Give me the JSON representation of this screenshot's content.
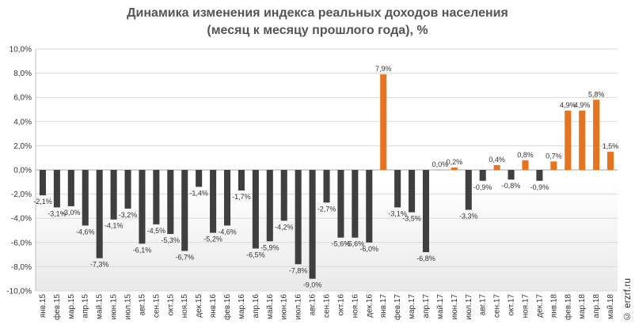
{
  "chart_data": {
    "type": "bar",
    "title_line1": "Динамика изменения индекса реальных доходов населения",
    "title_line2": "(месяц к месяцу прошлого года), %",
    "xlabel": "",
    "ylabel": "",
    "ylim": [
      -10,
      10
    ],
    "yticks": [
      "-10,0%",
      "-8,0%",
      "-6,0%",
      "-4,0%",
      "-2,0%",
      "0,0%",
      "2,0%",
      "4,0%",
      "6,0%",
      "8,0%",
      "10,0%"
    ],
    "ytick_values": [
      -10,
      -8,
      -6,
      -4,
      -2,
      0,
      2,
      4,
      6,
      8,
      10
    ],
    "categories": [
      "янв.15",
      "фев.15",
      "мар.15",
      "апр.15",
      "май.15",
      "июн.15",
      "июл.15",
      "авг.15",
      "сен.15",
      "окт.15",
      "ноя.15",
      "дек.15",
      "янв.16",
      "фев.16",
      "мар.16",
      "апр.16",
      "май.16",
      "июн.16",
      "июл.16",
      "авг.16",
      "сен.16",
      "окт.16",
      "ноя.16",
      "дек.16",
      "янв.17",
      "фев.17",
      "мар.17",
      "апр.17",
      "май.17",
      "июн.17",
      "июл.17",
      "авг.17",
      "сен.17",
      "окт.17",
      "ноя.17",
      "дек.17",
      "янв.18",
      "фев.18",
      "мар.18",
      "апр.18",
      "май.18"
    ],
    "values": [
      -2.1,
      -3.1,
      -3.0,
      -4.6,
      -7.3,
      -4.1,
      -3.2,
      -6.1,
      -4.5,
      -5.3,
      -6.7,
      -1.4,
      -5.2,
      -4.6,
      -1.7,
      -6.5,
      -5.9,
      -4.2,
      -7.8,
      -9.0,
      -2.7,
      -5.6,
      -5.6,
      -6.0,
      7.9,
      -3.1,
      -3.5,
      -6.8,
      0.0,
      0.2,
      -3.3,
      -0.9,
      0.4,
      -0.8,
      0.8,
      -0.9,
      0.7,
      4.9,
      4.9,
      5.8,
      1.5
    ],
    "data_labels": [
      "-2,1%",
      "-3,1%",
      "-3,0%",
      "-4,6%",
      "-7,3%",
      "-4,1%",
      "-3,2%",
      "-6,1%",
      "-4,5%",
      "-5,3%",
      "-6,7%",
      "-1,4%",
      "-5,2%",
      "-4,6%",
      "-1,7%",
      "-6,5%",
      "-5,9%",
      "-4,2%",
      "-7,8%",
      "-9,0%",
      "-2,7%",
      "-5,6%",
      "-5,6%",
      "-6,0%",
      "7,9%",
      "-3,1%",
      "-3,5%",
      "-6,8%",
      "0,0%",
      "0,2%",
      "-3,3%",
      "-0,9%",
      "0,4%",
      "-0,8%",
      "0,8%",
      "-0,9%",
      "0,7%",
      "4,9%",
      "4,9%",
      "5,8%",
      "1,5%"
    ],
    "grid": true,
    "colors": {
      "negative": "#3f3f3f",
      "positive": "#e8731c",
      "grid": "#d9d9d9",
      "axis": "#bfbfbf",
      "zero_line": "#a6a6a6",
      "background_bottom": "#e9e9e9"
    }
  },
  "watermark": "© erzrf.ru"
}
